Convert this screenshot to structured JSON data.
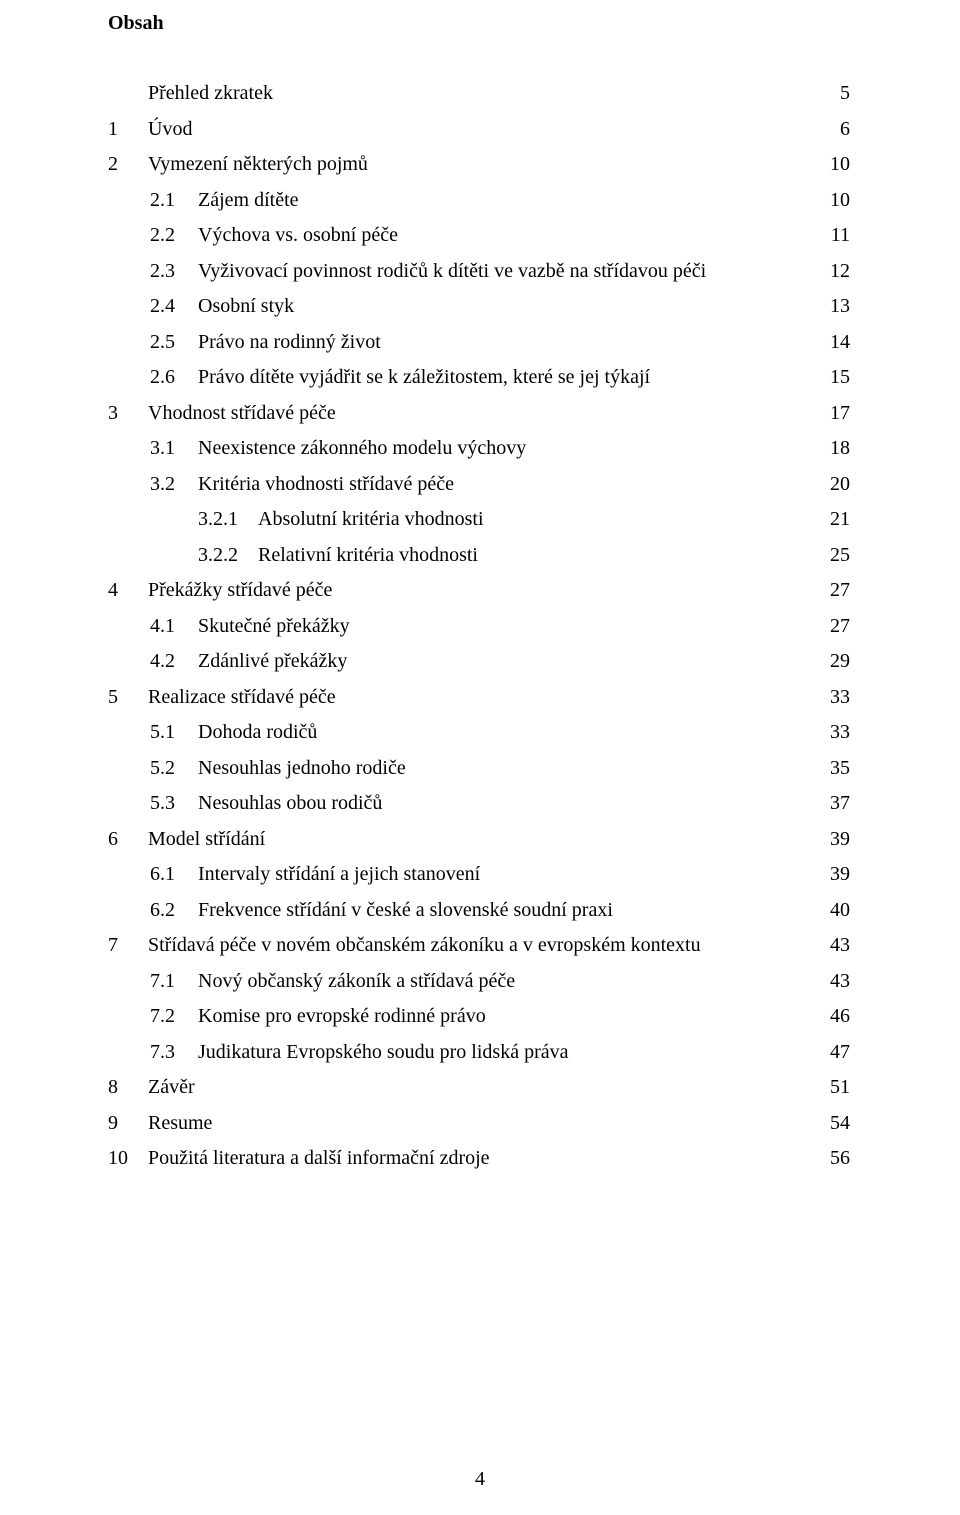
{
  "heading": "Obsah",
  "page_number": "4",
  "font_family": "Times New Roman",
  "text_color": "#000000",
  "background_color": "#ffffff",
  "body_font_size_pt": 12,
  "entries": [
    {
      "level": 0,
      "num": "",
      "label": "Přehled zkratek",
      "page": "5"
    },
    {
      "level": 0,
      "num": "1",
      "label": "Úvod",
      "page": "6"
    },
    {
      "level": 0,
      "num": "2",
      "label": "Vymezení některých pojmů",
      "page": "10"
    },
    {
      "level": 1,
      "num": "2.1",
      "label": "Zájem dítěte",
      "page": "10"
    },
    {
      "level": 1,
      "num": "2.2",
      "label": "Výchova vs. osobní péče",
      "page": "11"
    },
    {
      "level": 1,
      "num": "2.3",
      "label": "Vyživovací povinnost rodičů k dítěti ve vazbě na střídavou péči",
      "page": "12"
    },
    {
      "level": 1,
      "num": "2.4",
      "label": "Osobní styk",
      "page": "13"
    },
    {
      "level": 1,
      "num": "2.5",
      "label": "Právo na rodinný život",
      "page": "14"
    },
    {
      "level": 1,
      "num": "2.6",
      "label": "Právo dítěte vyjádřit se k záležitostem, které se jej týkají",
      "page": "15"
    },
    {
      "level": 0,
      "num": "3",
      "label": "Vhodnost střídavé péče",
      "page": "17"
    },
    {
      "level": 1,
      "num": "3.1",
      "label": "Neexistence zákonného modelu výchovy",
      "page": "18"
    },
    {
      "level": 1,
      "num": "3.2",
      "label": "Kritéria vhodnosti střídavé péče",
      "page": "20"
    },
    {
      "level": 2,
      "num": "3.2.1",
      "label": "Absolutní kritéria vhodnosti",
      "page": "21"
    },
    {
      "level": 2,
      "num": "3.2.2",
      "label": "Relativní kritéria vhodnosti",
      "page": "25"
    },
    {
      "level": 0,
      "num": "4",
      "label": "Překážky střídavé péče",
      "page": "27"
    },
    {
      "level": 1,
      "num": "4.1",
      "label": "Skutečné překážky",
      "page": "27"
    },
    {
      "level": 1,
      "num": "4.2",
      "label": "Zdánlivé překážky",
      "page": "29"
    },
    {
      "level": 0,
      "num": "5",
      "label": "Realizace střídavé péče",
      "page": "33"
    },
    {
      "level": 1,
      "num": "5.1",
      "label": "Dohoda rodičů",
      "page": "33"
    },
    {
      "level": 1,
      "num": "5.2",
      "label": "Nesouhlas jednoho rodiče",
      "page": "35"
    },
    {
      "level": 1,
      "num": "5.3",
      "label": "Nesouhlas obou rodičů",
      "page": "37"
    },
    {
      "level": 0,
      "num": "6",
      "label": "Model střídání",
      "page": "39"
    },
    {
      "level": 1,
      "num": "6.1",
      "label": "Intervaly střídání a jejich stanovení",
      "page": "39"
    },
    {
      "level": 1,
      "num": "6.2",
      "label": "Frekvence střídání v české a slovenské soudní praxi",
      "page": "40"
    },
    {
      "level": 0,
      "num": "7",
      "label": "Střídavá péče v novém občanském zákoníku a v evropském kontextu",
      "page": "43"
    },
    {
      "level": 1,
      "num": "7.1",
      "label": "Nový občanský zákoník a střídavá péče",
      "page": "43"
    },
    {
      "level": 1,
      "num": "7.2",
      "label": "Komise pro evropské rodinné právo",
      "page": "46"
    },
    {
      "level": 1,
      "num": "7.3",
      "label": "Judikatura Evropského soudu pro lidská práva",
      "page": "47"
    },
    {
      "level": 0,
      "num": "8",
      "label": "Závěr",
      "page": "51"
    },
    {
      "level": 0,
      "num": "9",
      "label": "Resume",
      "page": "54"
    },
    {
      "level": 0,
      "num": "10",
      "label": "Použitá literatura a další informační zdroje",
      "page": "56"
    }
  ]
}
